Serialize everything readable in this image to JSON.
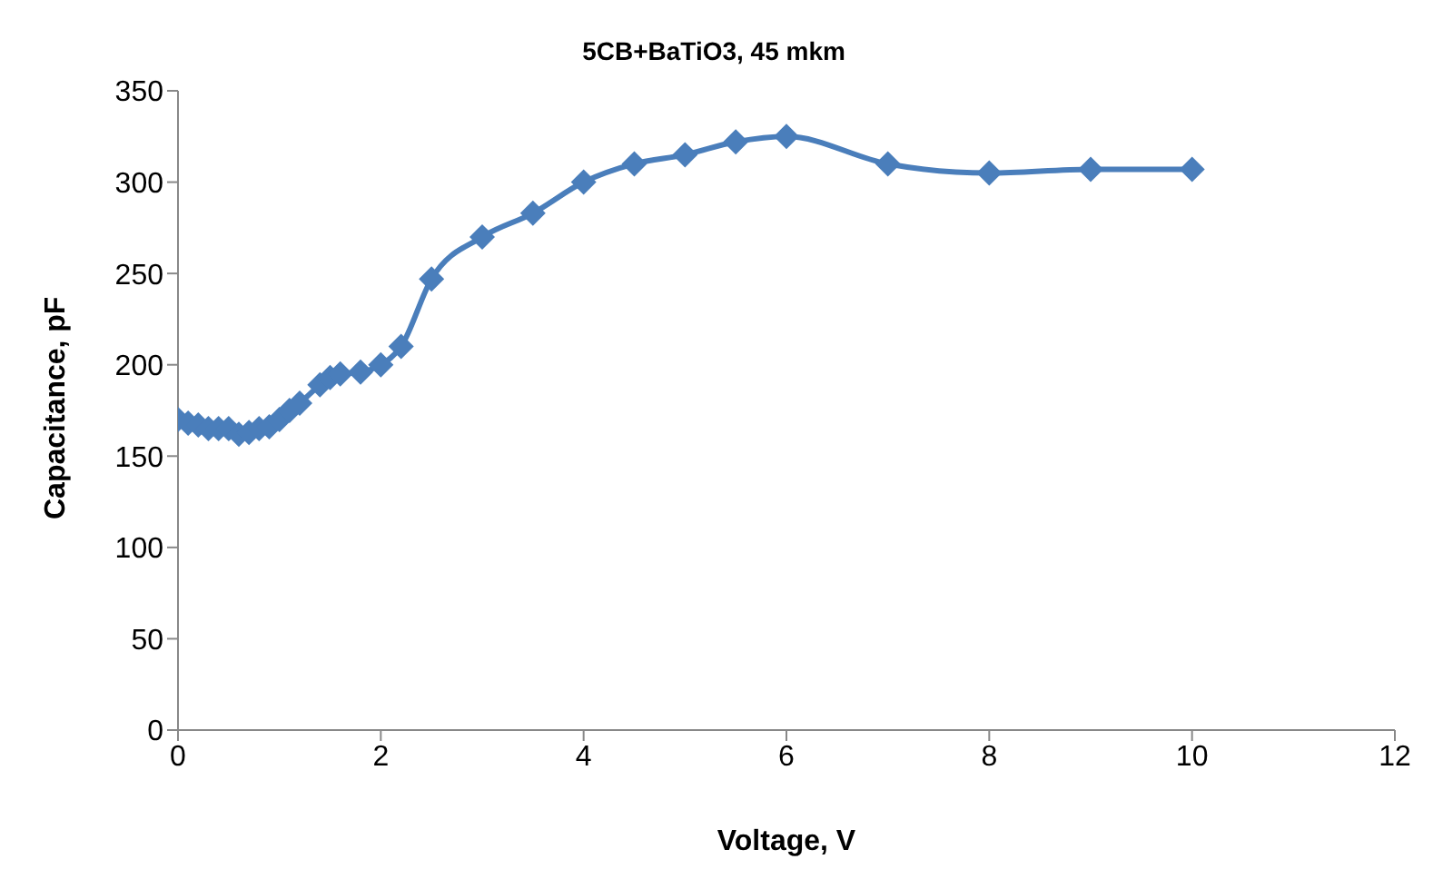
{
  "chart_data": {
    "type": "line",
    "title": "5CB+BaTiO3, 45 mkm",
    "xlabel": "Voltage, V",
    "ylabel": "Capacitance, pF",
    "x": [
      0,
      0.1,
      0.2,
      0.3,
      0.4,
      0.5,
      0.6,
      0.7,
      0.8,
      0.9,
      1.0,
      1.1,
      1.2,
      1.4,
      1.5,
      1.6,
      1.8,
      2.0,
      2.2,
      2.5,
      3,
      3.5,
      4,
      4.5,
      5,
      5.5,
      6,
      7,
      8,
      9,
      10
    ],
    "series": [
      {
        "color": "#4a7ebb",
        "values": [
          170,
          168,
          167,
          165,
          165,
          165,
          162,
          163,
          165,
          166,
          170,
          175,
          179,
          189,
          193,
          195,
          196,
          200,
          210,
          247,
          270,
          283,
          300,
          310,
          315,
          322,
          325,
          310,
          305,
          307,
          307
        ]
      }
    ],
    "xlim": [
      0,
      12
    ],
    "xticks": [
      0,
      2,
      4,
      6,
      8,
      10,
      12
    ],
    "ylim": [
      0,
      350
    ],
    "yticks": [
      0,
      50,
      100,
      150,
      200,
      250,
      300,
      350
    ],
    "grid": false,
    "legend": false,
    "marker": "diamond",
    "line_style": "solid"
  }
}
